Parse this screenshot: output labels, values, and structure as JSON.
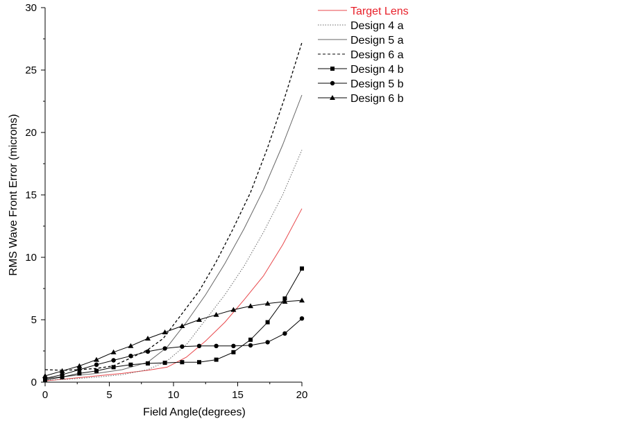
{
  "chart_data": {
    "type": "line",
    "title": "",
    "xlabel": "Field Angle(degrees)",
    "ylabel": "RMS Wave Front Error (microns)",
    "xlim": [
      0,
      20
    ],
    "ylim": [
      0,
      30
    ],
    "xticks": [
      0,
      5,
      10,
      15,
      20
    ],
    "yticks": [
      0,
      5,
      10,
      15,
      20,
      25,
      30
    ],
    "grid": false,
    "legend_position": "top-right, outside plot",
    "series": [
      {
        "name": "Target Lens",
        "color": "#e8474b",
        "style": "solid",
        "marker": "none",
        "x": [
          0,
          2,
          4,
          6,
          8,
          9.5,
          11,
          12.5,
          14,
          15.5,
          17,
          18.5,
          20
        ],
        "y": [
          0.1,
          0.3,
          0.5,
          0.7,
          0.95,
          1.2,
          2.0,
          3.3,
          4.8,
          6.6,
          8.5,
          11.0,
          13.9
        ]
      },
      {
        "name": "Design 4 a",
        "color": "#666666",
        "style": "dotted",
        "marker": "none",
        "x": [
          0,
          2,
          4,
          6,
          8,
          9.5,
          11,
          12.5,
          14,
          15.5,
          17,
          18.5,
          20
        ],
        "y": [
          0.15,
          0.25,
          0.4,
          0.6,
          1.0,
          1.7,
          3.0,
          5.0,
          7.0,
          9.3,
          12.0,
          15.0,
          18.6
        ]
      },
      {
        "name": "Design 5 a",
        "color": "#666666",
        "style": "solid",
        "marker": "none",
        "x": [
          0,
          2,
          4,
          6,
          8,
          9.5,
          11,
          12.5,
          14,
          15.5,
          17,
          18.5,
          20
        ],
        "y": [
          0.3,
          0.5,
          0.7,
          1.0,
          1.6,
          2.8,
          4.8,
          7.0,
          9.5,
          12.3,
          15.4,
          19.0,
          23.0
        ]
      },
      {
        "name": "Design 6 a",
        "color": "#000000",
        "style": "dashed",
        "marker": "none",
        "x": [
          0,
          1.4,
          2.6,
          4,
          5.3,
          6.6,
          8,
          9.2,
          10.6,
          12,
          13.3,
          14.6,
          16,
          17.3,
          18.6,
          20
        ],
        "y": [
          1.0,
          0.95,
          1.0,
          1.1,
          1.3,
          1.9,
          2.6,
          3.5,
          5.4,
          7.3,
          9.6,
          12.2,
          15.2,
          18.7,
          22.6,
          27.2
        ]
      },
      {
        "name": "Design 4 b",
        "color": "#000000",
        "style": "solid",
        "marker": "square",
        "x": [
          0,
          1.33,
          2.67,
          4,
          5.33,
          6.67,
          8,
          9.33,
          10.67,
          12,
          13.33,
          14.67,
          16,
          17.33,
          18.67,
          20
        ],
        "y": [
          0.2,
          0.4,
          0.7,
          0.9,
          1.2,
          1.4,
          1.5,
          1.55,
          1.6,
          1.6,
          1.8,
          2.4,
          3.4,
          4.8,
          6.7,
          9.1
        ]
      },
      {
        "name": "Design 5 b",
        "color": "#000000",
        "style": "solid",
        "marker": "circle",
        "x": [
          0,
          1.33,
          2.67,
          4,
          5.33,
          6.67,
          8,
          9.33,
          10.67,
          12,
          13.33,
          14.67,
          16,
          17.33,
          18.67,
          20
        ],
        "y": [
          0.3,
          0.6,
          1.0,
          1.4,
          1.75,
          2.1,
          2.45,
          2.7,
          2.85,
          2.9,
          2.9,
          2.9,
          2.95,
          3.2,
          3.9,
          5.1
        ]
      },
      {
        "name": "Design 6 b",
        "color": "#000000",
        "style": "solid",
        "marker": "triangle",
        "x": [
          0,
          1.33,
          2.67,
          4,
          5.33,
          6.67,
          8,
          9.33,
          10.67,
          12,
          13.33,
          14.67,
          16,
          17.33,
          18.67,
          20
        ],
        "y": [
          0.5,
          0.9,
          1.3,
          1.8,
          2.4,
          2.9,
          3.5,
          4.0,
          4.5,
          5.0,
          5.4,
          5.8,
          6.1,
          6.3,
          6.45,
          6.55
        ]
      }
    ]
  }
}
